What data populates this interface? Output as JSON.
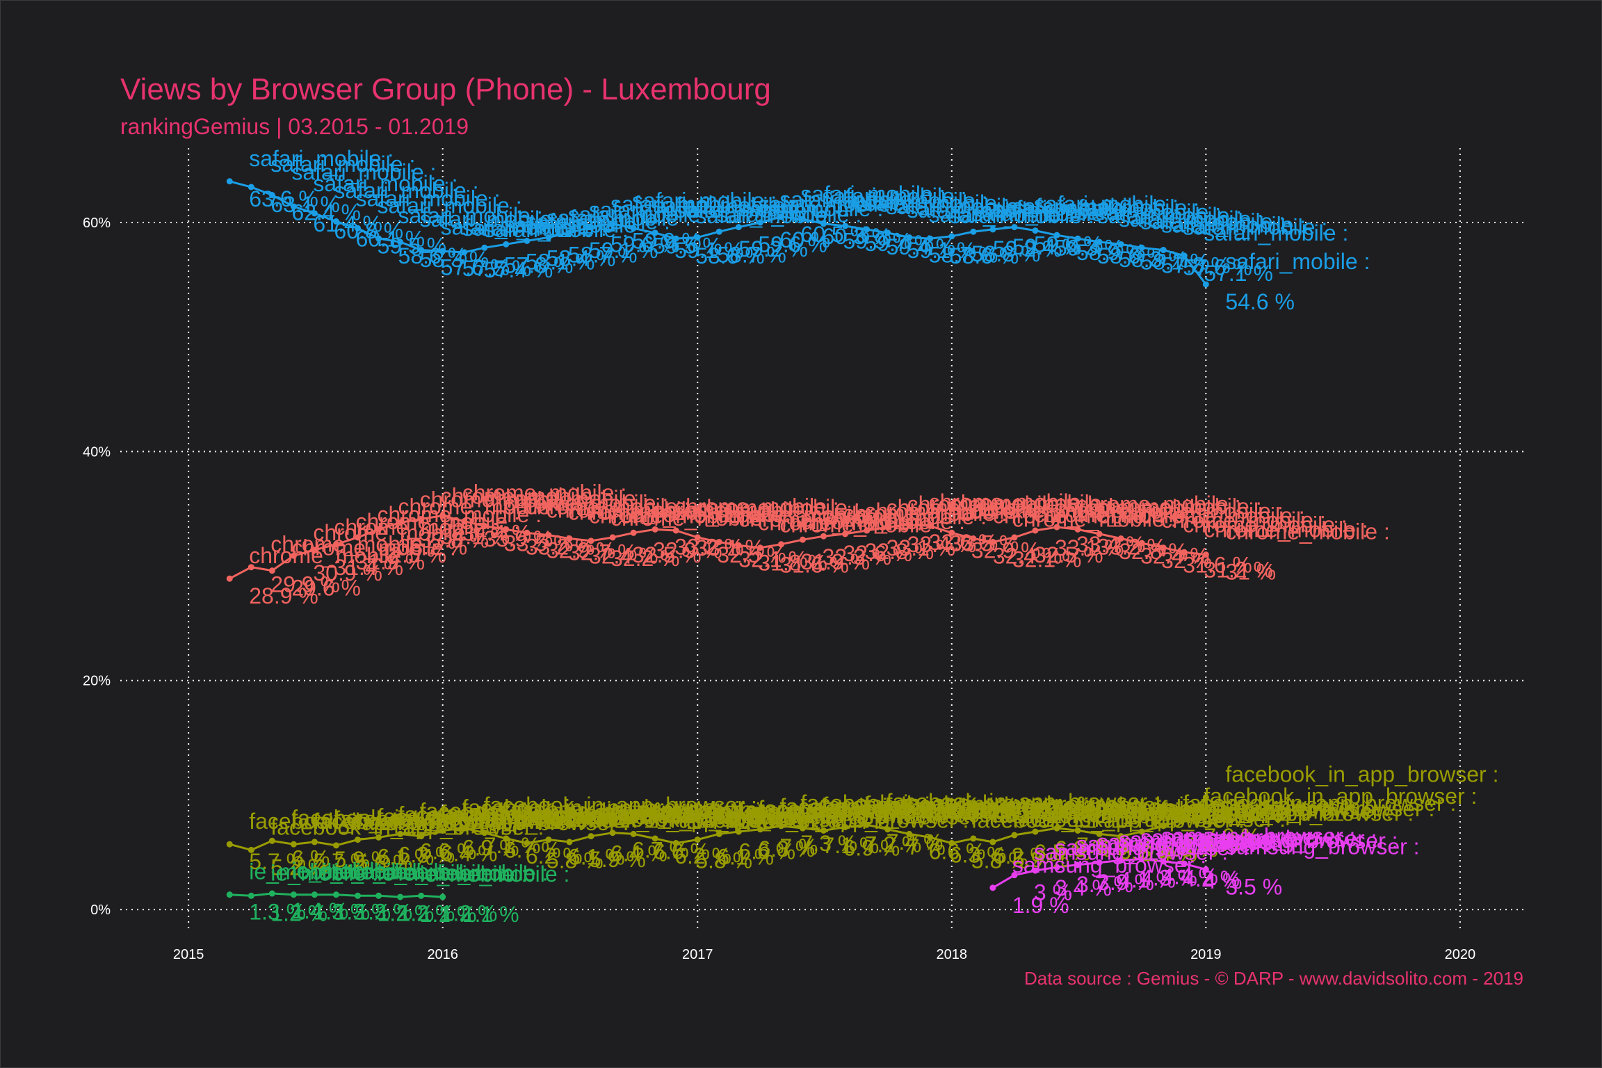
{
  "chart_data": {
    "type": "line",
    "title": "Views by Browser Group (Phone) - Luxembourg",
    "subtitle": "rankingGemius | 03.2015 - 01.2019",
    "caption": "Data source : Gemius - © DARP - www.davidsolito.com - 2019",
    "xlim": [
      "2014-09-25",
      "2020-04-01"
    ],
    "ylim": [
      -2,
      66.5
    ],
    "x_ticks": [
      {
        "date": "2015-01-01",
        "label": "2015"
      },
      {
        "date": "2016-01-01",
        "label": "2016"
      },
      {
        "date": "2017-01-01",
        "label": "2017"
      },
      {
        "date": "2018-01-01",
        "label": "2018"
      },
      {
        "date": "2019-01-01",
        "label": "2019"
      },
      {
        "date": "2020-01-01",
        "label": "2020"
      }
    ],
    "y_ticks": [
      {
        "value": 0,
        "label": "0%"
      },
      {
        "value": 20,
        "label": "20%"
      },
      {
        "value": 40,
        "label": "40%"
      },
      {
        "value": 60,
        "label": "60%"
      }
    ],
    "grid": true,
    "legend": "none",
    "series": [
      {
        "name": "safari_mobile",
        "color": "#1a9ee6",
        "x": [
          "2015-03-01",
          "2015-04-01",
          "2015-05-01",
          "2015-06-01",
          "2015-07-01",
          "2015-08-01",
          "2015-09-01",
          "2015-10-01",
          "2015-11-01",
          "2015-12-01",
          "2016-01-01",
          "2016-02-01",
          "2016-03-01",
          "2016-04-01",
          "2016-05-01",
          "2016-06-01",
          "2016-07-01",
          "2016-08-01",
          "2016-09-01",
          "2016-10-01",
          "2016-11-01",
          "2016-12-01",
          "2017-01-01",
          "2017-02-01",
          "2017-03-01",
          "2017-04-01",
          "2017-05-01",
          "2017-06-01",
          "2017-07-01",
          "2017-08-01",
          "2017-09-01",
          "2017-10-01",
          "2017-11-01",
          "2017-12-01",
          "2018-01-01",
          "2018-02-01",
          "2018-03-01",
          "2018-04-01",
          "2018-05-01",
          "2018-06-01",
          "2018-07-01",
          "2018-08-01",
          "2018-09-01",
          "2018-10-01",
          "2018-11-01",
          "2018-12-01",
          "2019-01-01"
        ],
        "values": [
          63.6,
          63.1,
          62.4,
          61.4,
          60.8,
          60.1,
          59.5,
          58.6,
          58.3,
          57.6,
          57.5,
          57.4,
          57.8,
          58.1,
          58.4,
          58.7,
          59.1,
          59.6,
          59.9,
          59.5,
          59.1,
          58.6,
          58.7,
          59.2,
          59.6,
          60.0,
          60.5,
          60.3,
          59.9,
          59.7,
          59.4,
          59.1,
          58.7,
          58.6,
          58.8,
          59.2,
          59.4,
          59.6,
          59.3,
          58.9,
          58.6,
          58.3,
          58.1,
          57.8,
          57.6,
          57.1,
          54.6
        ],
        "value_labels": [
          "63.6 %",
          "63.1 %",
          "62.4 %",
          "61.4 %",
          "60.8 %",
          "60.1 %",
          "59.5 %",
          "58.6 %",
          "58.3 %",
          "57.6 %",
          "57.5 %",
          "57.4 %",
          "57.8 %",
          "58.1 %",
          "58.4 %",
          "58.7 %",
          "59.1 %",
          "59.6 %",
          "59.9 %",
          "59.5 %",
          "59.1 %",
          "58.6 %",
          "58.7 %",
          "59.2 %",
          "59.6 %",
          "60 %",
          "60.5 %",
          "60.3 %",
          "59.9 %",
          "59.7 %",
          "59.4 %",
          "59.1 %",
          "58.7 %",
          "58.6 %",
          "58.8 %",
          "59.2 %",
          "59.4 %",
          "59.6 %",
          "59.3 %",
          "58.9 %",
          "58.6 %",
          "58.3 %",
          "58.1 %",
          "57.8 %",
          "57.6 %",
          "57.1 %",
          "54.6 %"
        ]
      },
      {
        "name": "chrome_mobile",
        "color": "#f2645f",
        "x": [
          "2015-03-01",
          "2015-04-01",
          "2015-05-01",
          "2015-06-01",
          "2015-07-01",
          "2015-08-01",
          "2015-09-01",
          "2015-10-01",
          "2015-11-01",
          "2015-12-01",
          "2016-01-01",
          "2016-02-01",
          "2016-03-01",
          "2016-04-01",
          "2016-05-01",
          "2016-06-01",
          "2016-07-01",
          "2016-08-01",
          "2016-09-01",
          "2016-10-01",
          "2016-11-01",
          "2016-12-01",
          "2017-01-01",
          "2017-02-01",
          "2017-03-01",
          "2017-04-01",
          "2017-05-01",
          "2017-06-01",
          "2017-07-01",
          "2017-08-01",
          "2017-09-01",
          "2017-10-01",
          "2017-11-01",
          "2017-12-01",
          "2018-01-01",
          "2018-02-01",
          "2018-03-01",
          "2018-04-01",
          "2018-05-01",
          "2018-06-01",
          "2018-07-01",
          "2018-08-01",
          "2018-09-01",
          "2018-10-01",
          "2018-11-01",
          "2018-12-01",
          "2019-01-01"
        ],
        "values": [
          28.9,
          29.9,
          29.6,
          30.9,
          31.4,
          31.9,
          32.5,
          33.2,
          33.8,
          34.1,
          34.4,
          33.9,
          33.5,
          33.2,
          32.9,
          32.7,
          32.4,
          32.2,
          32.5,
          32.9,
          33.2,
          33.1,
          32.5,
          32.1,
          31.8,
          31.6,
          31.9,
          32.3,
          32.6,
          32.8,
          33.1,
          33.4,
          33.6,
          33.5,
          32.9,
          32.4,
          32.1,
          32.5,
          33.1,
          33.4,
          33.2,
          32.8,
          32.4,
          32.0,
          31.6,
          31.2,
          31.0
        ],
        "value_labels": [
          "28.9 %",
          "29.9 %",
          "29.6 %",
          "30.9 %",
          "31.4 %",
          "31.9 %",
          "32.5 %",
          "33.2 %",
          "33.8 %",
          "34.1 %",
          "34.4 %",
          "33.9 %",
          "33.5 %",
          "33.2 %",
          "32.9 %",
          "32.7 %",
          "32.4 %",
          "32.2 %",
          "32.5 %",
          "32.9 %",
          "33.2 %",
          "33.1 %",
          "32.5 %",
          "32.1 %",
          "31.8 %",
          "31.6 %",
          "31.9 %",
          "32.3 %",
          "32.6 %",
          "32.8 %",
          "33.1 %",
          "33.4 %",
          "33.6 %",
          "33.5 %",
          "32.9 %",
          "32.4 %",
          "32.1 %",
          "32.5 %",
          "33.1 %",
          "33.4 %",
          "33.2 %",
          "32.8 %",
          "32.4 %",
          "32 %",
          "31.6 %",
          "31.2 %",
          "31 %"
        ]
      },
      {
        "name": "facebook_in_app_browser",
        "color": "#999c00",
        "x": [
          "2015-03-01",
          "2015-04-01",
          "2015-05-01",
          "2015-06-01",
          "2015-07-01",
          "2015-08-01",
          "2015-09-01",
          "2015-10-01",
          "2015-11-01",
          "2015-12-01",
          "2016-01-01",
          "2016-02-01",
          "2016-03-01",
          "2016-04-01",
          "2016-05-01",
          "2016-06-01",
          "2016-07-01",
          "2016-08-01",
          "2016-09-01",
          "2016-10-01",
          "2016-11-01",
          "2016-12-01",
          "2017-01-01",
          "2017-02-01",
          "2017-03-01",
          "2017-04-01",
          "2017-05-01",
          "2017-06-01",
          "2017-07-01",
          "2017-08-01",
          "2017-09-01",
          "2017-10-01",
          "2017-11-01",
          "2017-12-01",
          "2018-01-01",
          "2018-02-01",
          "2018-03-01",
          "2018-04-01",
          "2018-05-01",
          "2018-06-01",
          "2018-07-01",
          "2018-08-01",
          "2018-09-01",
          "2018-10-01",
          "2018-11-01",
          "2018-12-01",
          "2019-01-01"
        ],
        "values": [
          5.7,
          5.2,
          6.0,
          5.7,
          5.9,
          5.6,
          6.1,
          6.3,
          6.6,
          6.4,
          6.9,
          7.1,
          6.7,
          6.2,
          5.8,
          6.1,
          5.9,
          6.4,
          6.7,
          6.6,
          6.2,
          5.8,
          6.1,
          6.6,
          6.8,
          7.0,
          7.3,
          7.1,
          6.9,
          7.2,
          7.4,
          7.0,
          6.6,
          6.3,
          5.8,
          6.2,
          5.9,
          6.5,
          6.8,
          7.1,
          6.9,
          6.6,
          6.4,
          6.8,
          7.3,
          7.9,
          9.8
        ],
        "value_labels": [
          "5.7 %",
          "5.2 %",
          "6 %",
          "5.7 %",
          "5.9 %",
          "5.6 %",
          "6.1 %",
          "6.3 %",
          "6.6 %",
          "6.4 %",
          "6.9 %",
          "7.1 %",
          "6.7 %",
          "6.2 %",
          "5.8 %",
          "6.1 %",
          "5.9 %",
          "6.4 %",
          "6.7 %",
          "6.6 %",
          "6.2 %",
          "5.8 %",
          "6.1 %",
          "6.6 %",
          "6.8 %",
          "7 %",
          "7.3 %",
          "7.1 %",
          "6.9 %",
          "7.2 %",
          "7.4 %",
          "7 %",
          "6.6 %",
          "6.3 %",
          "5.8 %",
          "6.2 %",
          "5.9 %",
          "6.5 %",
          "6.8 %",
          "7.1 %",
          "6.9 %",
          "6.6 %",
          "6.4 %",
          "6.8 %",
          "7.3 %",
          "7.9 %",
          "9.8 %"
        ]
      },
      {
        "name": "samsung_browser",
        "color": "#e83ef0",
        "x": [
          "2018-03-01",
          "2018-04-01",
          "2018-05-01",
          "2018-06-01",
          "2018-07-01",
          "2018-08-01",
          "2018-09-01",
          "2018-10-01",
          "2018-11-01",
          "2018-12-01",
          "2019-01-01"
        ],
        "values": [
          1.9,
          3.0,
          3.4,
          3.7,
          3.9,
          4.1,
          4.3,
          4.4,
          4.2,
          4.0,
          3.5
        ],
        "value_labels": [
          "1.9 %",
          "3 %",
          "3.4 %",
          "3.7 %",
          "3.9 %",
          "4.1 %",
          "4.3 %",
          "4.4 %",
          "4.2 %",
          "4 %",
          "3.5 %"
        ]
      },
      {
        "name": "ie_mobile",
        "color": "#1fb25e",
        "x": [
          "2015-03-01",
          "2015-04-01",
          "2015-05-01",
          "2015-06-01",
          "2015-07-01",
          "2015-08-01",
          "2015-09-01",
          "2015-10-01",
          "2015-11-01",
          "2015-12-01",
          "2016-01-01"
        ],
        "values": [
          1.3,
          1.2,
          1.4,
          1.3,
          1.3,
          1.3,
          1.2,
          1.2,
          1.1,
          1.2,
          1.1
        ],
        "value_labels": [
          "1.3 %",
          "1.2 %",
          "1.4 %",
          "1.3 %",
          "1.3 %",
          "1.3 %",
          "1.2 %",
          "1.2 %",
          "1.1 %",
          "1.2 %",
          "1.1 %"
        ]
      }
    ]
  }
}
